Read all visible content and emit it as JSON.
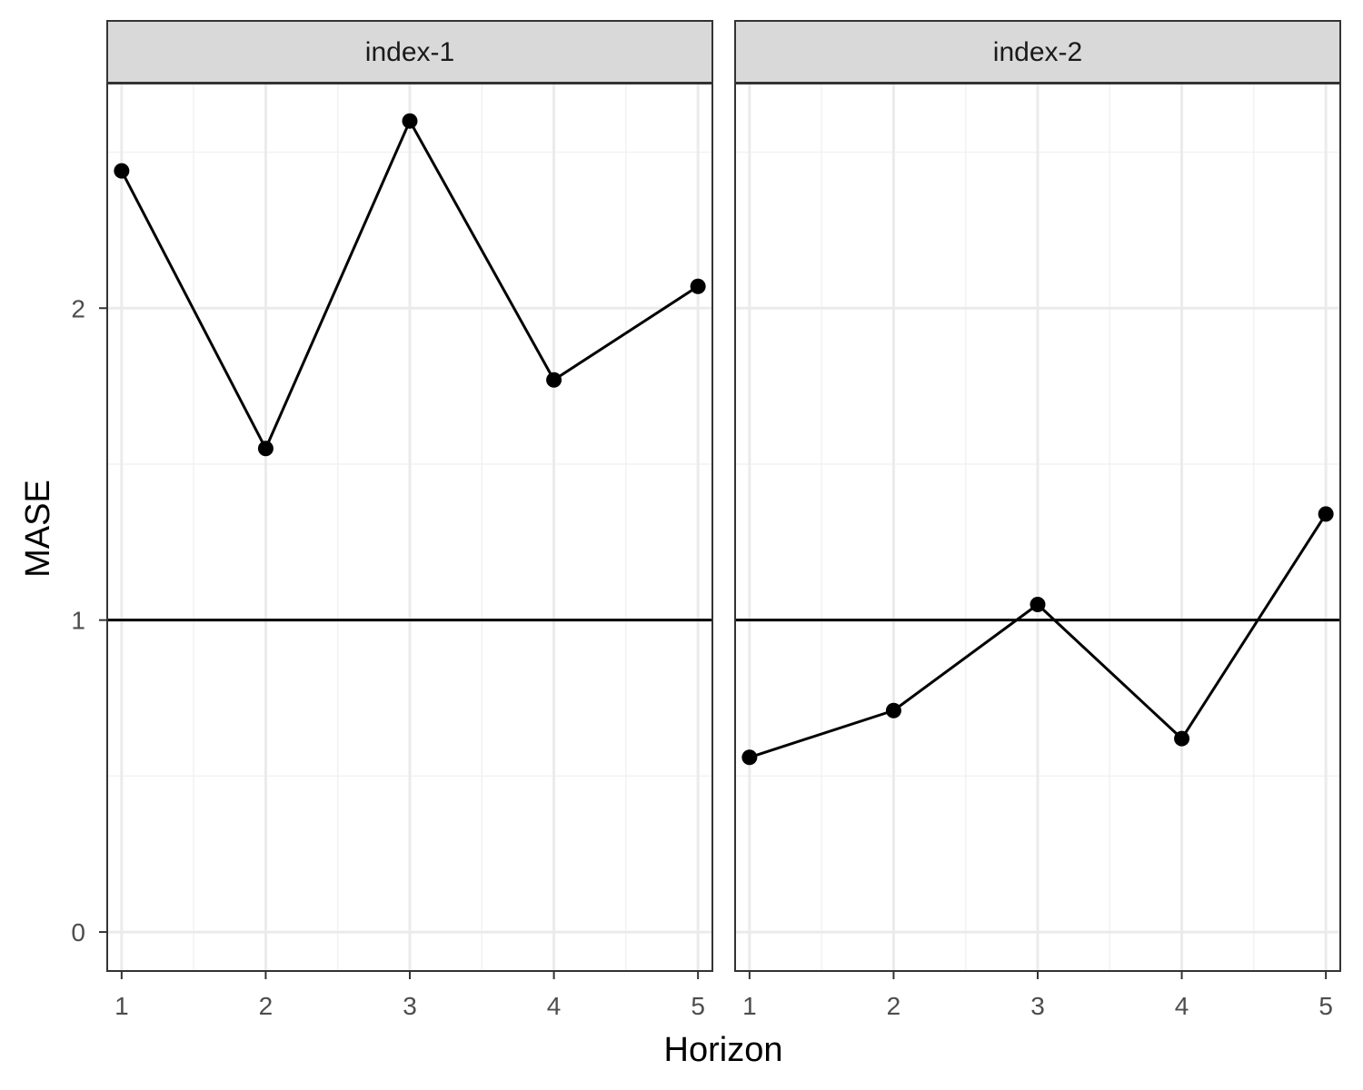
{
  "chart_data": {
    "type": "line",
    "xlabel": "Horizon",
    "ylabel": "MASE",
    "x": [
      1,
      2,
      3,
      4,
      5
    ],
    "xlim": [
      0.9,
      5.1
    ],
    "ylim": [
      -0.125,
      2.72
    ],
    "yticks": [
      0,
      1,
      2
    ],
    "reference_line": 1,
    "grid": true,
    "panels": [
      {
        "name": "index-1",
        "values": [
          2.44,
          1.55,
          2.6,
          1.77,
          2.07
        ]
      },
      {
        "name": "index-2",
        "values": [
          0.56,
          0.71,
          1.05,
          0.62,
          1.34
        ]
      }
    ],
    "colors": {
      "line": "#000000",
      "strip_fill": "#d9d9d9",
      "border": "#333333",
      "grid_major": "#ebebeb",
      "grid_minor": "#f2f2f2"
    }
  }
}
